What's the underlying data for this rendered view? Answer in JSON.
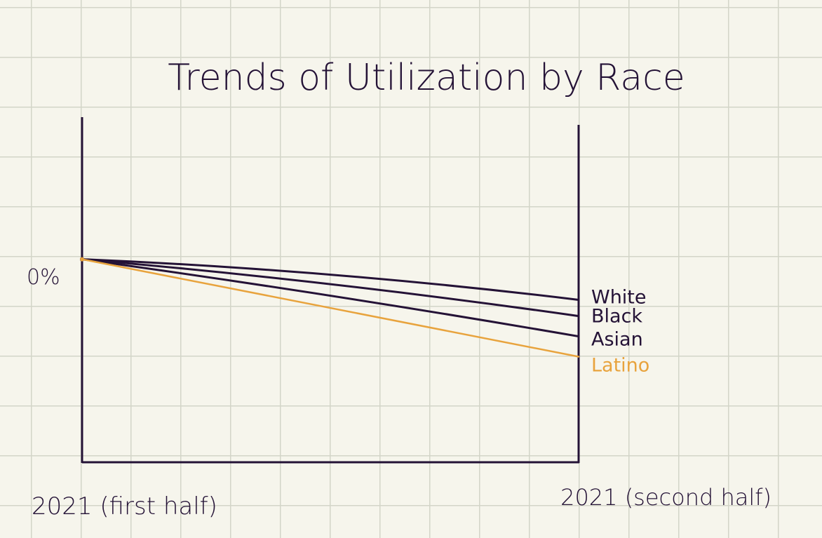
{
  "chart_data": {
    "type": "line",
    "title": "Trends of Utilization by Race",
    "x": [
      "2021 (first half)",
      "2021 (second half)"
    ],
    "ytick_labels": [
      "0%"
    ],
    "series": [
      {
        "name": "White",
        "values": [
          0,
          -0.2
        ],
        "color": "#241236"
      },
      {
        "name": "Black",
        "values": [
          0,
          -0.28
        ],
        "color": "#241236"
      },
      {
        "name": "Asian",
        "values": [
          0,
          -0.38
        ],
        "color": "#241236"
      },
      {
        "name": "Latino",
        "values": [
          0,
          -0.48
        ],
        "color": "#e8a33d"
      }
    ],
    "ylim": [
      -1,
      0.7
    ],
    "grid": true,
    "legend": "right-end labels"
  },
  "colors": {
    "axis": "#241236",
    "paper": "#f6f5ec",
    "grid": "#d3d5c8",
    "accent": "#e8a33d"
  }
}
